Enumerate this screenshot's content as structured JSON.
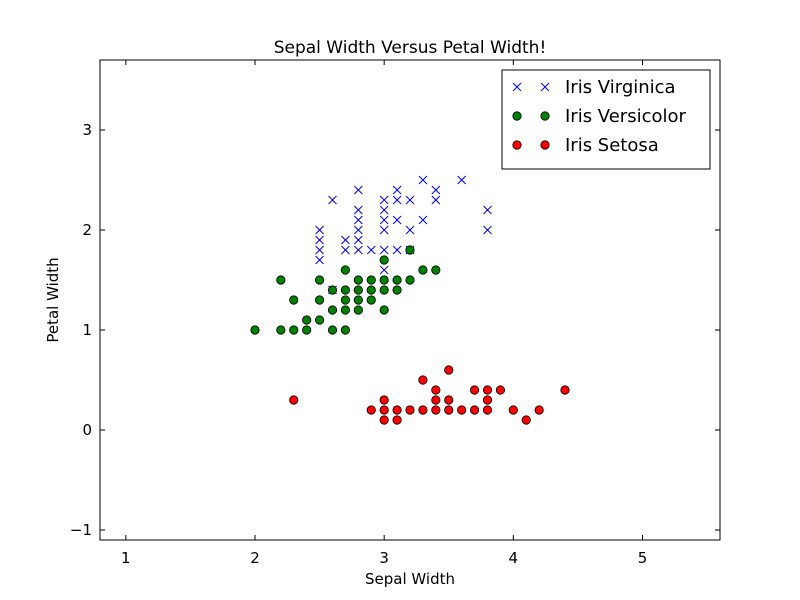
{
  "chart_data": {
    "type": "scatter",
    "title": "Sepal Width Versus Petal Width!",
    "xlabel": "Sepal Width",
    "ylabel": "Petal Width",
    "xlim": [
      0.8,
      5.6
    ],
    "ylim": [
      -1.1,
      3.7
    ],
    "xticks": [
      1,
      2,
      3,
      4,
      5
    ],
    "yticks": [
      -1,
      0,
      1,
      2,
      3
    ],
    "grid": false,
    "legend_position": "top-right",
    "series": [
      {
        "name": "Iris Virginica",
        "marker": "x",
        "color": "#0000ff",
        "points": [
          [
            2.5,
            2.0
          ],
          [
            2.5,
            1.9
          ],
          [
            2.5,
            1.8
          ],
          [
            2.5,
            1.7
          ],
          [
            2.6,
            2.3
          ],
          [
            2.6,
            1.4
          ],
          [
            2.7,
            1.9
          ],
          [
            2.7,
            1.8
          ],
          [
            2.8,
            2.4
          ],
          [
            2.8,
            2.2
          ],
          [
            2.8,
            2.1
          ],
          [
            2.8,
            2.0
          ],
          [
            2.8,
            1.9
          ],
          [
            2.8,
            1.8
          ],
          [
            2.9,
            1.8
          ],
          [
            3.0,
            2.3
          ],
          [
            3.0,
            2.2
          ],
          [
            3.0,
            2.1
          ],
          [
            3.0,
            2.0
          ],
          [
            3.0,
            1.8
          ],
          [
            3.0,
            1.6
          ],
          [
            3.1,
            2.4
          ],
          [
            3.1,
            2.3
          ],
          [
            3.1,
            2.1
          ],
          [
            3.1,
            1.8
          ],
          [
            3.2,
            2.3
          ],
          [
            3.2,
            2.0
          ],
          [
            3.2,
            1.8
          ],
          [
            3.3,
            2.5
          ],
          [
            3.3,
            2.1
          ],
          [
            3.4,
            2.4
          ],
          [
            3.4,
            2.3
          ],
          [
            3.6,
            2.5
          ],
          [
            3.8,
            2.2
          ],
          [
            3.8,
            2.0
          ]
        ]
      },
      {
        "name": "Iris Versicolor",
        "marker": "o",
        "color": "#008000",
        "points": [
          [
            2.0,
            1.0
          ],
          [
            2.2,
            1.5
          ],
          [
            2.2,
            1.0
          ],
          [
            2.3,
            1.3
          ],
          [
            2.3,
            1.0
          ],
          [
            2.4,
            1.1
          ],
          [
            2.4,
            1.0
          ],
          [
            2.5,
            1.5
          ],
          [
            2.5,
            1.3
          ],
          [
            2.5,
            1.1
          ],
          [
            2.6,
            1.4
          ],
          [
            2.6,
            1.2
          ],
          [
            2.6,
            1.0
          ],
          [
            2.7,
            1.6
          ],
          [
            2.7,
            1.4
          ],
          [
            2.7,
            1.3
          ],
          [
            2.7,
            1.2
          ],
          [
            2.7,
            1.0
          ],
          [
            2.8,
            1.5
          ],
          [
            2.8,
            1.4
          ],
          [
            2.8,
            1.3
          ],
          [
            2.8,
            1.2
          ],
          [
            2.9,
            1.5
          ],
          [
            2.9,
            1.4
          ],
          [
            2.9,
            1.3
          ],
          [
            3.0,
            1.7
          ],
          [
            3.0,
            1.5
          ],
          [
            3.0,
            1.4
          ],
          [
            3.0,
            1.2
          ],
          [
            3.1,
            1.5
          ],
          [
            3.1,
            1.4
          ],
          [
            3.2,
            1.8
          ],
          [
            3.2,
            1.5
          ],
          [
            3.3,
            1.6
          ],
          [
            3.4,
            1.6
          ]
        ]
      },
      {
        "name": "Iris Setosa",
        "marker": "o",
        "color": "#ff0000",
        "points": [
          [
            2.3,
            0.3
          ],
          [
            2.9,
            0.2
          ],
          [
            3.0,
            0.3
          ],
          [
            3.0,
            0.2
          ],
          [
            3.0,
            0.1
          ],
          [
            3.1,
            0.2
          ],
          [
            3.1,
            0.1
          ],
          [
            3.2,
            0.2
          ],
          [
            3.3,
            0.5
          ],
          [
            3.3,
            0.2
          ],
          [
            3.4,
            0.4
          ],
          [
            3.4,
            0.3
          ],
          [
            3.4,
            0.2
          ],
          [
            3.5,
            0.6
          ],
          [
            3.5,
            0.3
          ],
          [
            3.5,
            0.2
          ],
          [
            3.6,
            0.2
          ],
          [
            3.7,
            0.4
          ],
          [
            3.7,
            0.2
          ],
          [
            3.8,
            0.4
          ],
          [
            3.8,
            0.3
          ],
          [
            3.8,
            0.2
          ],
          [
            3.9,
            0.4
          ],
          [
            4.0,
            0.2
          ],
          [
            4.1,
            0.1
          ],
          [
            4.2,
            0.2
          ],
          [
            4.4,
            0.4
          ]
        ]
      }
    ]
  }
}
